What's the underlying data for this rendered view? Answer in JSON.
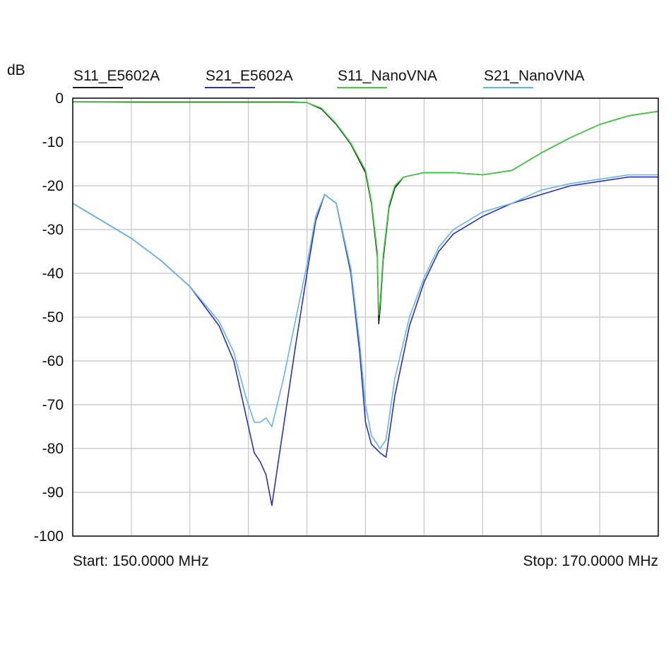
{
  "chart_data": {
    "type": "line",
    "ylabel": "dB",
    "ylim": [
      -100,
      0
    ],
    "xlim": [
      150,
      170
    ],
    "yticks": [
      "0",
      "-10",
      "-20",
      "-30",
      "-40",
      "-50",
      "-60",
      "-70",
      "-80",
      "-90",
      "-100"
    ],
    "start_label": "Start: 150.0000 MHz",
    "stop_label": "Stop: 170.0000 MHz",
    "grid": true,
    "legend_position": "top",
    "series": [
      {
        "name": "S11_E5602A",
        "color": "#1a1a1a",
        "x": [
          150.0,
          152.0,
          154.0,
          156.0,
          157.5,
          158.0,
          158.5,
          159.0,
          159.5,
          160.0,
          160.2,
          160.4,
          160.45,
          160.5,
          160.6,
          160.8,
          161.0,
          161.3,
          162.0,
          163.0,
          164.0,
          165.0,
          166.0,
          167.0,
          168.0,
          169.0,
          170.0
        ],
        "values": [
          -0.8,
          -0.9,
          -0.9,
          -0.9,
          -0.9,
          -1.0,
          -2.5,
          -6.0,
          -10.5,
          -17.0,
          -24.0,
          -36.0,
          -51.5,
          -48.0,
          -37.0,
          -25.0,
          -20.5,
          -18.0,
          -17.0,
          -17.0,
          -17.5,
          -16.5,
          -12.5,
          -9.0,
          -6.0,
          -4.0,
          -3.0
        ]
      },
      {
        "name": "S21_E5602A",
        "color": "#2b2fc4",
        "x": [
          150.0,
          151.0,
          152.0,
          153.0,
          154.0,
          155.0,
          155.5,
          155.9,
          156.2,
          156.4,
          156.6,
          156.8,
          157.2,
          157.6,
          158.0,
          158.3,
          158.6,
          159.0,
          159.5,
          159.8,
          160.0,
          160.2,
          160.5,
          160.7,
          161.0,
          161.5,
          162.0,
          162.5,
          163.0,
          164.0,
          165.0,
          166.0,
          167.0,
          168.0,
          169.0,
          170.0
        ],
        "values": [
          -24,
          -28,
          -32,
          -37,
          -43,
          -52,
          -60,
          -72,
          -81,
          -83,
          -86,
          -93,
          -75,
          -57,
          -40,
          -28,
          -22,
          -24,
          -40,
          -58,
          -74,
          -79,
          -81,
          -82,
          -68,
          -52,
          -42,
          -35,
          -31,
          -27,
          -24,
          -22,
          -20,
          -19,
          -18,
          -18
        ]
      },
      {
        "name": "S11_NanoVNA",
        "color": "#3ecf3e",
        "x": [
          150.0,
          152.0,
          154.0,
          156.0,
          157.5,
          158.0,
          158.5,
          159.0,
          159.5,
          160.0,
          160.2,
          160.4,
          160.45,
          160.5,
          160.6,
          160.8,
          161.0,
          161.3,
          162.0,
          163.0,
          164.0,
          165.0,
          166.0,
          167.0,
          168.0,
          169.0,
          170.0
        ],
        "values": [
          -0.8,
          -0.8,
          -0.8,
          -0.8,
          -0.8,
          -1.0,
          -2.3,
          -5.8,
          -10.3,
          -16.5,
          -23.5,
          -35.0,
          -49.5,
          -46.5,
          -36.0,
          -24.5,
          -20.0,
          -18.0,
          -17.0,
          -17.0,
          -17.5,
          -16.5,
          -12.5,
          -9.0,
          -6.0,
          -4.0,
          -3.0
        ]
      },
      {
        "name": "S21_NanoVNA",
        "color": "#63b6e6",
        "x": [
          150.0,
          151.0,
          152.0,
          153.0,
          154.0,
          155.0,
          155.5,
          155.9,
          156.2,
          156.4,
          156.6,
          156.8,
          157.2,
          157.6,
          158.0,
          158.3,
          158.6,
          159.0,
          159.5,
          159.8,
          160.0,
          160.2,
          160.5,
          160.7,
          161.0,
          161.5,
          162.0,
          162.5,
          163.0,
          164.0,
          165.0,
          166.0,
          167.0,
          168.0,
          169.0,
          170.0
        ],
        "values": [
          -24,
          -28,
          -32,
          -37,
          -43,
          -51,
          -58,
          -68,
          -74,
          -74,
          -73,
          -75,
          -64,
          -51,
          -38,
          -27,
          -22,
          -24,
          -39,
          -56,
          -70,
          -77,
          -80,
          -78,
          -64,
          -50,
          -41,
          -34,
          -30,
          -26,
          -24,
          -21,
          -19.5,
          -18.5,
          -17.5,
          -17.5
        ]
      }
    ]
  }
}
